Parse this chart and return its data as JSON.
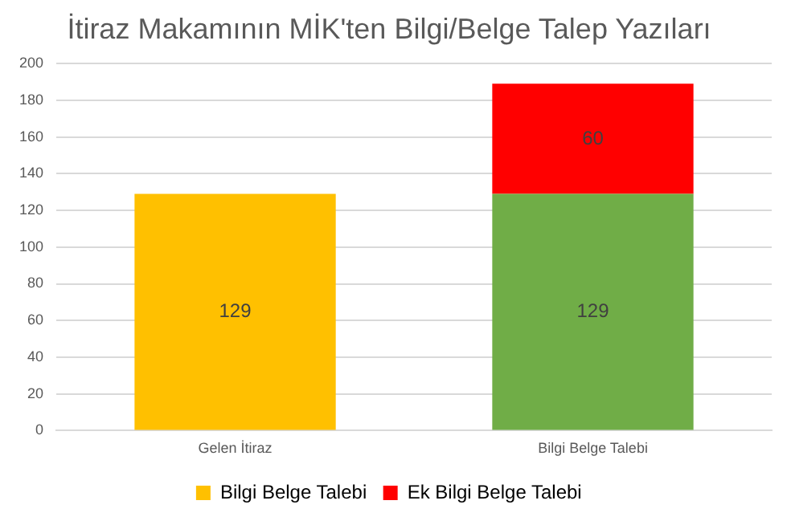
{
  "chart_data": {
    "type": "bar",
    "title": "İtiraz Makamının MİK'ten Bilgi/Belge Talep Yazıları",
    "categories": [
      "Gelen İtiraz",
      "Bilgi Belge Talebi"
    ],
    "stacked": true,
    "data_labels": true,
    "grid": "y",
    "legend": "bottom",
    "ylim": [
      0,
      200
    ],
    "yticks": [
      0,
      20,
      40,
      60,
      80,
      100,
      120,
      140,
      160,
      180,
      200
    ],
    "series": [
      {
        "name": "Bilgi Belge Talebi",
        "colors": [
          "#ffc000",
          "#70ad47"
        ],
        "values": [
          129,
          129
        ]
      },
      {
        "name": "Ek Bilgi Belge Talebi",
        "color": "#ff0000",
        "values": [
          null,
          60
        ]
      }
    ]
  }
}
